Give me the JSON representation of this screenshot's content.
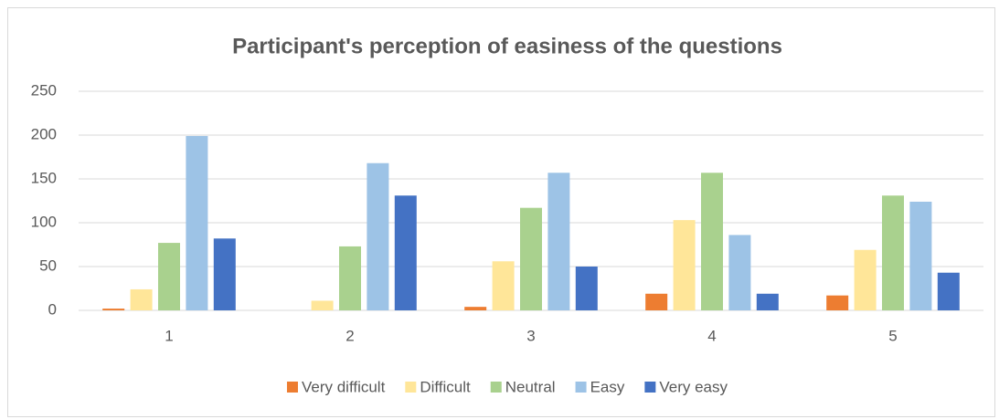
{
  "chart_data": {
    "type": "bar",
    "title": "Participant's perception of easiness of the questions",
    "categories": [
      "1",
      "2",
      "3",
      "4",
      "5"
    ],
    "series": [
      {
        "name": "Very difficult",
        "color": "#ED7D31",
        "values": [
          2,
          0,
          4,
          19,
          17
        ]
      },
      {
        "name": "Difficult",
        "color": "#FFE699",
        "values": [
          24,
          11,
          56,
          103,
          69
        ]
      },
      {
        "name": "Neutral",
        "color": "#A9D18E",
        "values": [
          77,
          73,
          117,
          157,
          131
        ]
      },
      {
        "name": "Easy",
        "color": "#9DC3E6",
        "values": [
          199,
          168,
          157,
          86,
          124
        ]
      },
      {
        "name": "Very easy",
        "color": "#4472C4",
        "values": [
          82,
          131,
          50,
          19,
          43
        ]
      }
    ],
    "ylim": [
      0,
      250
    ],
    "yticks": [
      0,
      50,
      100,
      150,
      200,
      250
    ],
    "grid": true,
    "legend": "bottom"
  }
}
